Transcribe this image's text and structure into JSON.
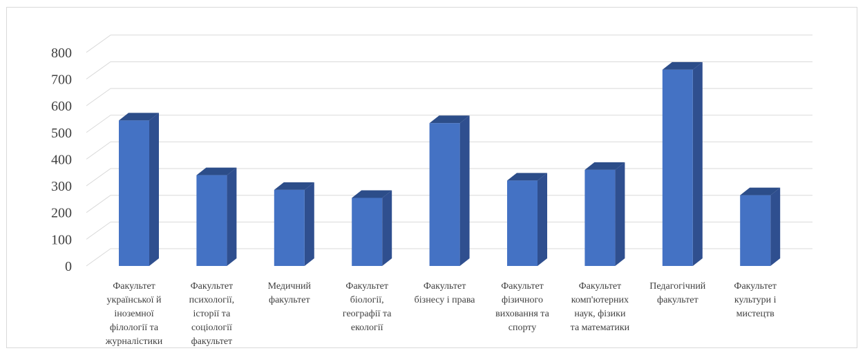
{
  "chart_data": {
    "type": "bar",
    "title": "",
    "xlabel": "",
    "ylabel": "",
    "ylim": [
      0,
      800
    ],
    "yticks": [
      0,
      100,
      200,
      300,
      400,
      500,
      600,
      700,
      800
    ],
    "grid": true,
    "legend": "none",
    "categories": [
      [
        "Факультет",
        "української й",
        "іноземної",
        "філології та",
        "журналістики"
      ],
      [
        "Факультет",
        "психології,",
        "історії та",
        "соціології",
        "факультет"
      ],
      [
        "Медичний",
        "факультет"
      ],
      [
        "Факультет",
        "біології,",
        "географії та",
        "екології"
      ],
      [
        "Факультет",
        "бізнесу і права"
      ],
      [
        "Факультет",
        "фізичного",
        "виховання та",
        "спорту"
      ],
      [
        "Факультет",
        "комп'ютерних",
        "наук, фізики",
        "та математики"
      ],
      [
        "Педагогічний",
        "факультет"
      ],
      [
        "Факультет",
        "культури і",
        "мистецтв"
      ]
    ],
    "values": [
      545,
      340,
      285,
      255,
      535,
      320,
      360,
      735,
      265
    ],
    "colors": {
      "front": "#4472c4",
      "side": "#2f4f8f",
      "top": "#2c4d89",
      "grid": "#d9d9d9",
      "text": "#404040"
    }
  }
}
